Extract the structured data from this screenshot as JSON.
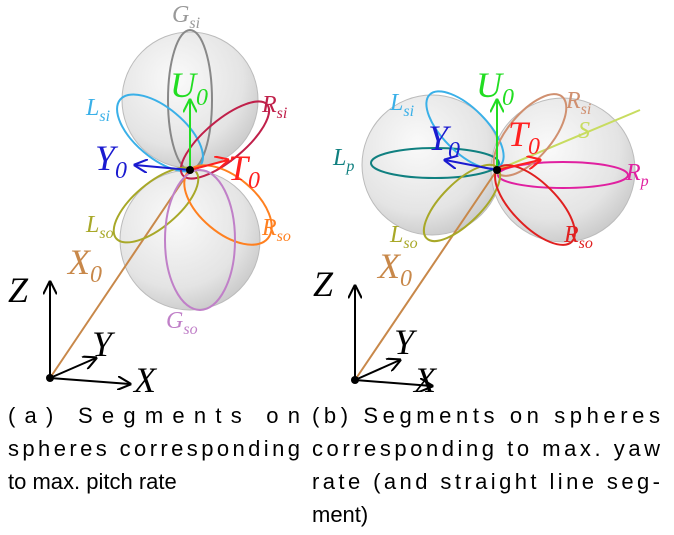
{
  "panel_a": {
    "labels": {
      "g_si": {
        "base": "G",
        "sub": "si"
      },
      "l_si": {
        "base": "L",
        "sub": "si"
      },
      "u_0": {
        "base": "U",
        "sub": "0"
      },
      "r_si": {
        "base": "R",
        "sub": "si"
      },
      "y_0": {
        "base": "Y",
        "sub": "0"
      },
      "t_0": {
        "base": "T",
        "sub": "0"
      },
      "l_so": {
        "base": "L",
        "sub": "so"
      },
      "r_so": {
        "base": "R",
        "sub": "so"
      },
      "x_0": {
        "base": "X",
        "sub": "0"
      },
      "g_so": {
        "base": "G",
        "sub": "so"
      }
    },
    "axes": {
      "z": "Z",
      "y": "Y",
      "x": "X"
    },
    "caption": [
      "(a) Segments on",
      "spheres corresponding",
      "to max. pitch rate"
    ]
  },
  "panel_b": {
    "labels": {
      "l_si": {
        "base": "L",
        "sub": "si"
      },
      "u_0": {
        "base": "U",
        "sub": "0"
      },
      "r_si": {
        "base": "R",
        "sub": "si"
      },
      "y_0": {
        "base": "Y",
        "sub": "0"
      },
      "t_0": {
        "base": "T",
        "sub": "0"
      },
      "l_p": {
        "base": "L",
        "sub": "p"
      },
      "s": "S",
      "r_p": {
        "base": "R",
        "sub": "p"
      },
      "l_so": {
        "base": "L",
        "sub": "so"
      },
      "r_so": {
        "base": "R",
        "sub": "so"
      },
      "x_0": {
        "base": "X",
        "sub": "0"
      }
    },
    "axes": {
      "z": "Z",
      "y": "Y",
      "x": "X"
    },
    "caption": [
      "(b) Segments on spheres",
      "corresponding to max. yaw",
      "rate (and straight line seg-",
      "ment)"
    ]
  }
}
